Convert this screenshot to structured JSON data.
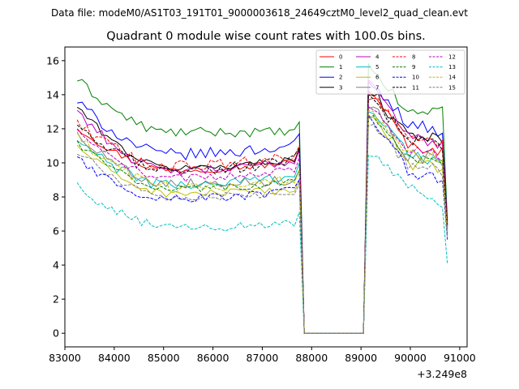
{
  "chart_data": {
    "type": "line",
    "suptitle": "Data file: modeM0/AS1T03_191T01_9000003618_24649cztM0_level2_quad_clean.evt",
    "title": "Quadrant 0 module wise count rates with 100.0s bins.",
    "xlabel": "",
    "ylabel": "",
    "x_offset_label": "+3.249e8",
    "x_offset": 324900000,
    "xlim": [
      83000,
      91150
    ],
    "ylim": [
      -0.8,
      16.8
    ],
    "xticks": [
      83000,
      84000,
      85000,
      86000,
      87000,
      88000,
      89000,
      90000,
      91000
    ],
    "xtick_labels": [
      "83000",
      "84000",
      "85000",
      "86000",
      "87000",
      "88000",
      "89000",
      "90000",
      "91000"
    ],
    "yticks": [
      0,
      2,
      4,
      6,
      8,
      10,
      12,
      14,
      16
    ],
    "ytick_labels": [
      "0",
      "2",
      "4",
      "6",
      "8",
      "10",
      "12",
      "14",
      "16"
    ],
    "bin_seconds": 100.0,
    "segments": [
      {
        "start": 83250,
        "end": 87750
      },
      {
        "start": 89150,
        "end": 90750
      }
    ],
    "gap": {
      "start": 87850,
      "end": 89050,
      "value": 0
    },
    "legend_location": "upper-right",
    "series": [
      {
        "name": "0",
        "color": "#ff0000",
        "dash": "solid",
        "profile": [
          12.1,
          9.6,
          10.1,
          14.2,
          11.0,
          10.6,
          6.3
        ]
      },
      {
        "name": "1",
        "color": "#008000",
        "dash": "solid",
        "profile": [
          14.9,
          11.8,
          11.8,
          15.5,
          12.9,
          13.2,
          6.6
        ]
      },
      {
        "name": "2",
        "color": "#0000ff",
        "dash": "solid",
        "profile": [
          13.6,
          10.5,
          11.1,
          14.5,
          12.4,
          11.7,
          6.5
        ]
      },
      {
        "name": "3",
        "color": "#000000",
        "dash": "solid",
        "profile": [
          13.3,
          9.7,
          10.3,
          14.0,
          11.8,
          11.4,
          6.4
        ]
      },
      {
        "name": "4",
        "color": "#bf00bf",
        "dash": "solid",
        "profile": [
          13.1,
          9.5,
          10.2,
          14.8,
          11.6,
          10.9,
          6.2
        ]
      },
      {
        "name": "5",
        "color": "#00bfbf",
        "dash": "solid",
        "profile": [
          11.3,
          8.7,
          9.4,
          13.0,
          10.6,
          9.9,
          5.8
        ]
      },
      {
        "name": "6",
        "color": "#bfbf00",
        "dash": "solid",
        "profile": [
          11.0,
          8.2,
          8.4,
          12.8,
          10.0,
          9.6,
          5.7
        ]
      },
      {
        "name": "7",
        "color": "#808080",
        "dash": "solid",
        "profile": [
          11.7,
          8.8,
          9.0,
          13.4,
          10.5,
          10.0,
          5.9
        ]
      },
      {
        "name": "8",
        "color": "#ff0000",
        "dash": "dashed",
        "profile": [
          12.4,
          9.8,
          10.4,
          13.9,
          11.5,
          11.0,
          6.3
        ]
      },
      {
        "name": "9",
        "color": "#008000",
        "dash": "dashed",
        "profile": [
          11.2,
          8.5,
          8.9,
          12.9,
          10.3,
          9.8,
          5.8
        ]
      },
      {
        "name": "10",
        "color": "#0000ff",
        "dash": "dashed",
        "profile": [
          10.2,
          7.9,
          8.4,
          12.5,
          9.5,
          8.9,
          5.5
        ]
      },
      {
        "name": "11",
        "color": "#000000",
        "dash": "dashed",
        "profile": [
          12.0,
          9.6,
          10.2,
          13.8,
          11.3,
          10.9,
          6.2
        ]
      },
      {
        "name": "12",
        "color": "#bf00bf",
        "dash": "dashed",
        "profile": [
          11.8,
          9.1,
          9.7,
          13.2,
          10.9,
          10.3,
          6.0
        ]
      },
      {
        "name": "13",
        "color": "#00bfbf",
        "dash": "dashed",
        "profile": [
          8.6,
          6.2,
          6.5,
          10.4,
          8.6,
          7.0,
          4.1
        ]
      },
      {
        "name": "14",
        "color": "#bfbf00",
        "dash": "dashed",
        "profile": [
          11.5,
          8.6,
          9.0,
          13.1,
          10.5,
          10.1,
          5.9
        ]
      },
      {
        "name": "15",
        "color": "#808080",
        "dash": "dashed",
        "profile": [
          10.7,
          8.0,
          8.2,
          12.3,
          9.9,
          9.3,
          5.6
        ]
      }
    ]
  }
}
